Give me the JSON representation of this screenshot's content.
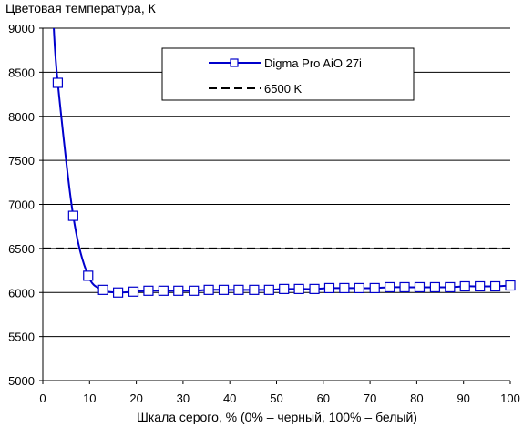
{
  "chart_data": {
    "type": "line",
    "title": "",
    "ylabel": "Цветовая температура, К",
    "xlabel": "Шкала серого, % (0% – черный, 100% – белый)",
    "xlim": [
      0,
      100
    ],
    "ylim": [
      5000,
      9000
    ],
    "x_ticks": [
      0,
      10,
      20,
      30,
      40,
      50,
      60,
      70,
      80,
      90,
      100
    ],
    "y_ticks": [
      5000,
      5500,
      6000,
      6500,
      7000,
      7500,
      8000,
      8500,
      9000
    ],
    "grid": "horizontal",
    "legend_position": "top-center",
    "series": [
      {
        "name": "Digma Pro AiO 27i",
        "color": "#0000cc",
        "marker": "open-square",
        "x": [
          3.2,
          6.5,
          9.7,
          12.9,
          16.1,
          19.4,
          22.6,
          25.8,
          29.0,
          32.3,
          35.5,
          38.7,
          41.9,
          45.2,
          48.4,
          51.6,
          54.8,
          58.1,
          61.3,
          64.5,
          67.7,
          71.0,
          74.2,
          77.4,
          80.6,
          83.9,
          87.1,
          90.3,
          93.5,
          96.8,
          100.0
        ],
        "y": [
          8380,
          6870,
          6190,
          6030,
          6000,
          6010,
          6020,
          6020,
          6020,
          6020,
          6030,
          6030,
          6030,
          6030,
          6030,
          6040,
          6040,
          6040,
          6050,
          6050,
          6050,
          6050,
          6060,
          6060,
          6060,
          6060,
          6060,
          6070,
          6070,
          6070,
          6080
        ]
      },
      {
        "name": "6500 K",
        "color": "#000000",
        "style": "dashed",
        "y_constant": 6500
      }
    ]
  }
}
